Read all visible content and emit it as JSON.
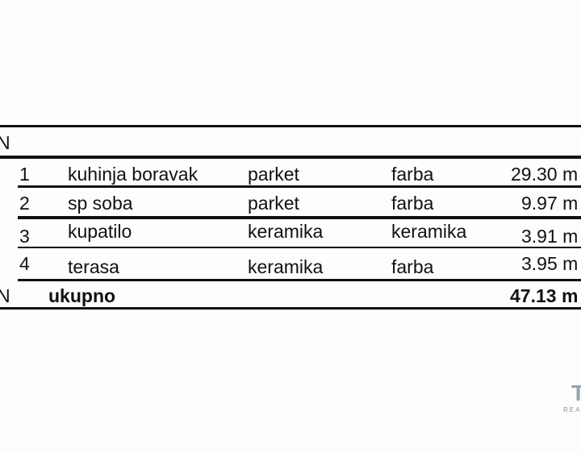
{
  "header_label": "N",
  "rows": [
    {
      "num": "1",
      "room": "kuhinja boravak",
      "floor": "parket",
      "wall": "farba",
      "area": "29.30 m"
    },
    {
      "num": "2",
      "room": "sp soba",
      "floor": "parket",
      "wall": "farba",
      "area": "9.97 m"
    },
    {
      "num": "3",
      "room": "kupatilo",
      "floor": "keramika",
      "wall": "keramika",
      "area": "3.91 m"
    },
    {
      "num": "4",
      "room": "terasa",
      "floor": "keramika",
      "wall": "farba",
      "area": "3.95 m"
    }
  ],
  "total": {
    "prefix": "N",
    "label": "ukupno",
    "area": "47.13 m"
  },
  "watermark": {
    "logo_letter": "T",
    "text": "REA"
  }
}
